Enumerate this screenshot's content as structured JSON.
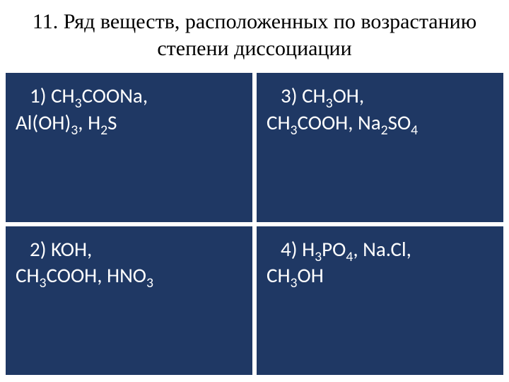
{
  "title": "11. Ряд веществ, расположенных по возрастанию степени диссоциации",
  "cells": {
    "c1": {
      "num": "1)",
      "line1": "CH₃COONa,",
      "line2": "Al(OH)₃, H₂S"
    },
    "c2": {
      "num": "3)",
      "line1": "CH₃OH,",
      "line2": "CH₃COOH, Na₂SO₄"
    },
    "c3": {
      "num": "2)",
      "line1": "KOH,",
      "line2": "CH₃COOH, HNO₃"
    },
    "c4": {
      "num": "4)",
      "line1": "H₃PO₄, Na.Cl,",
      "line2": "CH₃OH"
    }
  },
  "colors": {
    "cell_bg": "#1f3864",
    "cell_text": "#ffffff",
    "title_text": "#000000",
    "background": "#ffffff"
  }
}
